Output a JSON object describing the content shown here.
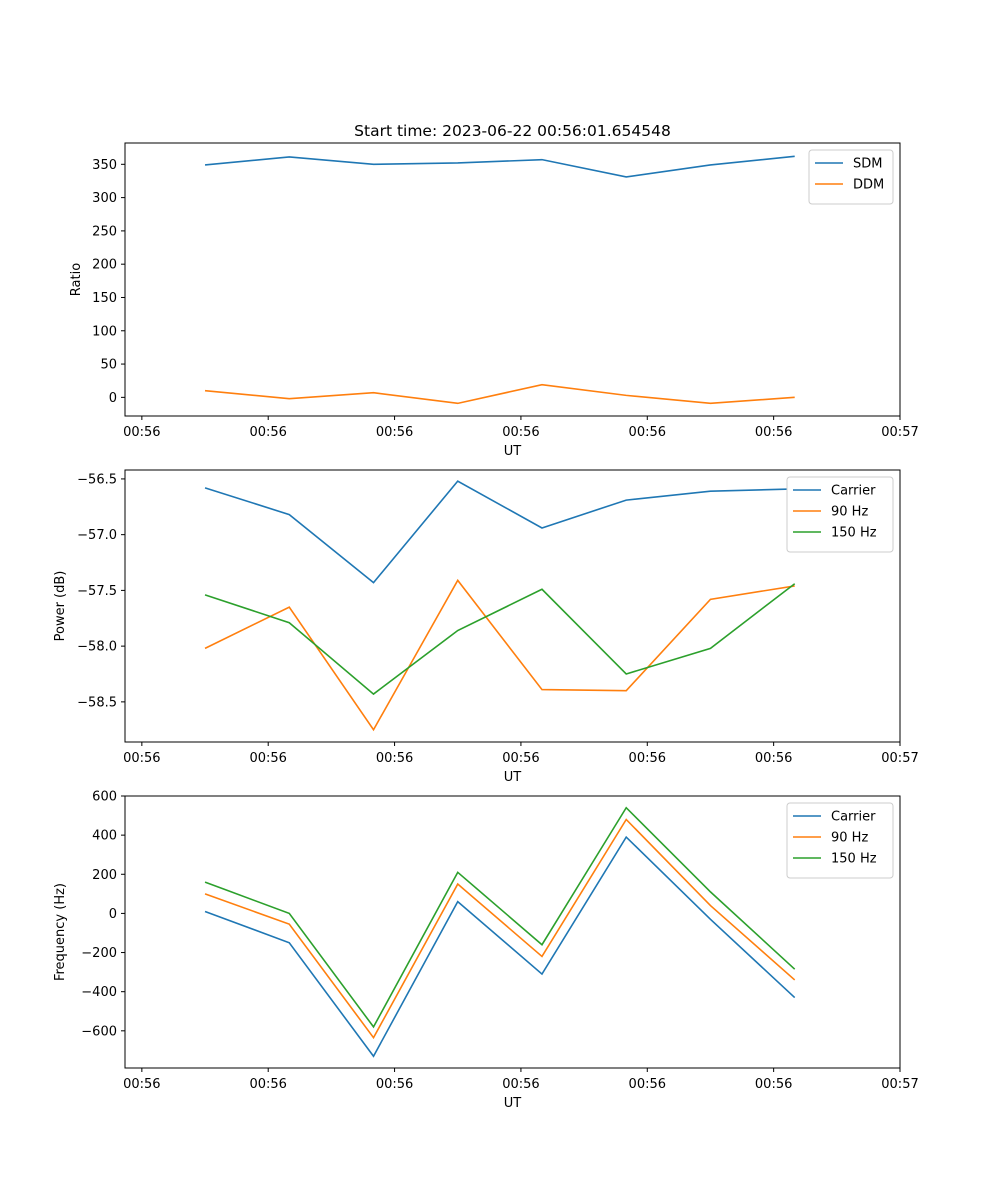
{
  "figure": {
    "title": "Start time: 2023-06-22 00:56:01.654548"
  },
  "colors": {
    "blue": "#1f77b4",
    "orange": "#ff7f0e",
    "green": "#2ca02c"
  },
  "chart_data": [
    {
      "type": "line",
      "title": "Start time: 2023-06-22 00:56:01.654548",
      "xlabel": "UT",
      "ylabel": "Ratio",
      "x": [
        1,
        2,
        3,
        4,
        5,
        6,
        7,
        8
      ],
      "x_tick_values": [
        0.25,
        1.75,
        3.25,
        4.75,
        6.25,
        7.75,
        9.25
      ],
      "x_tick_labels": [
        "00:56",
        "00:56",
        "00:56",
        "00:56",
        "00:56",
        "00:56",
        "00:57"
      ],
      "xlim": [
        0.05,
        9.25
      ],
      "ylim": [
        -28,
        382
      ],
      "y_ticks": [
        0,
        50,
        100,
        150,
        200,
        250,
        300,
        350
      ],
      "y_tick_labels": [
        "0",
        "50",
        "100",
        "150",
        "200",
        "250",
        "300",
        "350"
      ],
      "legend_position": "upper right",
      "grid": false,
      "series": [
        {
          "name": "SDM",
          "color": "#1f77b4",
          "values": [
            349,
            361,
            350,
            352,
            357,
            331,
            349,
            362
          ]
        },
        {
          "name": "DDM",
          "color": "#ff7f0e",
          "values": [
            10,
            -2,
            7,
            -9,
            19,
            3,
            -9,
            0
          ]
        }
      ]
    },
    {
      "type": "line",
      "title": "",
      "xlabel": "UT",
      "ylabel": "Power (dB)",
      "x": [
        1,
        2,
        3,
        4,
        5,
        6,
        7,
        8
      ],
      "x_tick_values": [
        0.25,
        1.75,
        3.25,
        4.75,
        6.25,
        7.75,
        9.25
      ],
      "x_tick_labels": [
        "00:56",
        "00:56",
        "00:56",
        "00:56",
        "00:56",
        "00:56",
        "00:57"
      ],
      "xlim": [
        0.05,
        9.25
      ],
      "ylim": [
        -58.86,
        -56.42
      ],
      "y_ticks": [
        -58.5,
        -58.0,
        -57.5,
        -57.0,
        -56.5
      ],
      "y_tick_labels": [
        "−58.5",
        "−58.0",
        "−57.5",
        "−57.0",
        "−56.5"
      ],
      "legend_position": "upper right",
      "grid": false,
      "series": [
        {
          "name": "Carrier",
          "color": "#1f77b4",
          "values": [
            -56.58,
            -56.82,
            -57.43,
            -56.52,
            -56.94,
            -56.69,
            -56.61,
            -56.59
          ]
        },
        {
          "name": "90 Hz",
          "color": "#ff7f0e",
          "values": [
            -58.02,
            -57.65,
            -58.75,
            -57.41,
            -58.39,
            -58.4,
            -57.58,
            -57.46
          ]
        },
        {
          "name": "150 Hz",
          "color": "#2ca02c",
          "values": [
            -57.54,
            -57.79,
            -58.43,
            -57.86,
            -57.49,
            -58.25,
            -58.02,
            -57.44
          ]
        }
      ]
    },
    {
      "type": "line",
      "title": "",
      "xlabel": "UT",
      "ylabel": "Frequency (Hz)",
      "x": [
        1,
        2,
        3,
        4,
        5,
        6,
        7,
        8
      ],
      "x_tick_values": [
        0.25,
        1.75,
        3.25,
        4.75,
        6.25,
        7.75,
        9.25
      ],
      "x_tick_labels": [
        "00:56",
        "00:56",
        "00:56",
        "00:56",
        "00:56",
        "00:56",
        "00:57"
      ],
      "xlim": [
        0.05,
        9.25
      ],
      "ylim": [
        -790,
        600
      ],
      "y_ticks": [
        -600,
        -400,
        -200,
        0,
        200,
        400,
        600
      ],
      "y_tick_labels": [
        "−600",
        "−400",
        "−200",
        "0",
        "200",
        "400",
        "600"
      ],
      "legend_position": "upper right",
      "grid": false,
      "series": [
        {
          "name": "Carrier",
          "color": "#1f77b4",
          "values": [
            10,
            -150,
            -730,
            60,
            -310,
            390,
            -30,
            -430
          ]
        },
        {
          "name": "90 Hz",
          "color": "#ff7f0e",
          "values": [
            100,
            -55,
            -635,
            150,
            -220,
            480,
            40,
            -340
          ]
        },
        {
          "name": "150 Hz",
          "color": "#2ca02c",
          "values": [
            160,
            0,
            -580,
            210,
            -160,
            540,
            110,
            -285
          ]
        }
      ]
    }
  ]
}
